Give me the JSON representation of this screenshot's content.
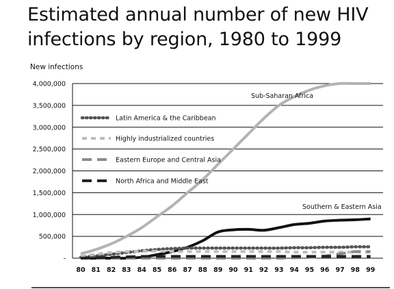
{
  "chart_data": {
    "type": "line",
    "title_line1": "Estimated annual number of new HIV",
    "title_line2": "infections  by region, 1980 to 1999",
    "ylabel": "New infections",
    "xlabel": "",
    "categories": [
      "80",
      "81",
      "82",
      "83",
      "84",
      "85",
      "86",
      "87",
      "88",
      "89",
      "90",
      "91",
      "92",
      "93",
      "94",
      "95",
      "96",
      "97",
      "98",
      "99"
    ],
    "ylim": [
      0,
      4000000
    ],
    "yticks": [
      0,
      500000,
      1000000,
      1500000,
      2000000,
      2500000,
      3000000,
      3500000,
      4000000
    ],
    "ytick_labels": [
      "-",
      "500,000",
      "1,000,000",
      "1,500,000",
      "2,000,000",
      "2,500,000",
      "3,000,000",
      "3,500,000",
      "4,000,000"
    ],
    "grid": true,
    "legend_position": "left",
    "series": [
      {
        "name": "Sub-Saharan Africa",
        "color": "#b3b3b3",
        "style": "solid",
        "values": [
          100000,
          200000,
          330000,
          500000,
          700000,
          950000,
          1200000,
          1500000,
          1800000,
          2150000,
          2500000,
          2850000,
          3200000,
          3500000,
          3700000,
          3850000,
          3950000,
          4000000,
          4000000,
          4000000
        ]
      },
      {
        "name": "Southern & Eastern Asia",
        "color": "#111111",
        "style": "solid",
        "values": [
          0,
          0,
          0,
          0,
          20000,
          80000,
          150000,
          250000,
          400000,
          600000,
          650000,
          660000,
          640000,
          700000,
          770000,
          800000,
          850000,
          870000,
          880000,
          900000
        ]
      },
      {
        "name": "Latin America & the Caribbean",
        "color": "#555555",
        "style": "dotted",
        "values": [
          20000,
          50000,
          90000,
          130000,
          170000,
          200000,
          220000,
          230000,
          230000,
          230000,
          230000,
          230000,
          230000,
          230000,
          240000,
          240000,
          250000,
          250000,
          260000,
          260000
        ]
      },
      {
        "name": "Highly industrialized countries",
        "color": "#bdbdbd",
        "style": "dashed",
        "values": [
          40000,
          90000,
          130000,
          150000,
          160000,
          160000,
          155000,
          150000,
          150000,
          150000,
          150000,
          150000,
          150000,
          150000,
          140000,
          140000,
          140000,
          140000,
          140000,
          140000
        ]
      },
      {
        "name": "Eastern Europe and Central Asia",
        "color": "#8a8a8a",
        "style": "longdash",
        "values": [
          0,
          0,
          0,
          0,
          0,
          0,
          0,
          0,
          0,
          0,
          0,
          0,
          0,
          0,
          10000,
          20000,
          50000,
          100000,
          150000,
          150000
        ]
      },
      {
        "name": "North Africa and Middle East",
        "color": "#222222",
        "style": "longdash",
        "values": [
          0,
          10000,
          20000,
          30000,
          40000,
          40000,
          40000,
          40000,
          40000,
          40000,
          40000,
          40000,
          40000,
          40000,
          40000,
          40000,
          40000,
          40000,
          40000,
          40000
        ]
      }
    ],
    "legend": [
      "Latin America & the Caribbean",
      "Highly industrialized countries",
      "Eastern Europe and Central Asia",
      "North Africa and Middle East"
    ],
    "annotations": [
      "Sub-Saharan Africa",
      "Southern & Eastern Asia"
    ]
  }
}
